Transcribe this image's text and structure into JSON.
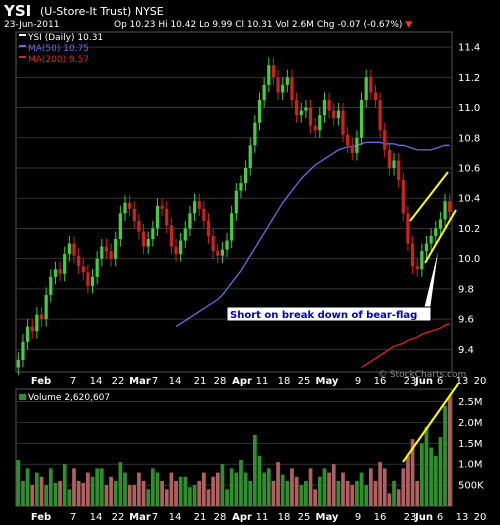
{
  "header": {
    "symbol": "YSI",
    "company": "(U-Store-It Trust)",
    "exchange": "NYSE",
    "date": "23-Jun-2011",
    "open": "Op 10.23",
    "high": "Hi 10.42",
    "low": "Lo 9.99",
    "close": "Cl 10.31",
    "volume": "Vol 2.6M",
    "change": "Chg -0.07 (-0.67%)",
    "change_arrow": "▼"
  },
  "watermark": "© StockCharts.com",
  "colors": {
    "up": "#44cc44",
    "down": "#cc2222",
    "ma50": "#6a6ae0",
    "ma200": "#dd2222",
    "annotation": "#ffff00",
    "volume_up": "#2f8f2f",
    "volume_down": "#b06060",
    "grid": "#333333"
  },
  "annotation": {
    "text": "Short on break down of bear-flag"
  },
  "chart_data": [
    {
      "type": "candlestick",
      "legend": [
        {
          "label": "YSI (Daily) 10.31",
          "color": "#ffffff"
        },
        {
          "label": "MA(50) 10.75",
          "color": "#6a6ae0"
        },
        {
          "label": "MA(200) 9.57",
          "color": "#dd2222"
        }
      ],
      "ylim": [
        9.25,
        11.5
      ],
      "yticks": [
        9.4,
        9.6,
        9.8,
        10.0,
        10.2,
        10.4,
        10.6,
        10.8,
        11.0,
        11.2,
        11.4
      ],
      "ytick_labels": [
        "9.4",
        "9.6",
        "9.8",
        "10.0",
        "10.2",
        "10.4",
        "10.6",
        "10.8",
        "11.0",
        "11.2",
        "11.4"
      ],
      "xtick_labels": [
        "Feb",
        "7",
        "14",
        "22",
        "Mar",
        "7",
        "14",
        "21",
        "28",
        "Apr",
        "11",
        "18",
        "25",
        "May",
        "9",
        "16",
        "23",
        "Jun",
        "6",
        "13",
        "20"
      ],
      "close": [
        9.33,
        9.45,
        9.55,
        9.52,
        9.63,
        9.6,
        9.76,
        9.88,
        9.93,
        9.9,
        10.03,
        10.1,
        10.02,
        9.95,
        9.91,
        9.82,
        9.88,
        10.0,
        10.08,
        10.05,
        10.0,
        10.13,
        10.3,
        10.37,
        10.33,
        10.25,
        10.18,
        10.08,
        10.13,
        10.2,
        10.35,
        10.33,
        10.22,
        10.08,
        10.03,
        10.12,
        10.2,
        10.3,
        10.38,
        10.33,
        10.25,
        10.15,
        10.05,
        10.02,
        10.06,
        10.12,
        10.3,
        10.45,
        10.5,
        10.6,
        10.75,
        10.9,
        11.05,
        11.15,
        11.28,
        11.2,
        11.1,
        11.15,
        11.2,
        11.05,
        10.95,
        10.98,
        11.0,
        10.88,
        10.85,
        10.95,
        11.05,
        10.98,
        10.93,
        10.98,
        10.82,
        10.75,
        10.7,
        10.8,
        11.05,
        11.2,
        11.1,
        11.05,
        10.85,
        10.72,
        10.6,
        10.65,
        10.52,
        10.3,
        10.1,
        9.95,
        9.93,
        10.05,
        10.1,
        10.15,
        10.2,
        10.26,
        10.38,
        10.31
      ],
      "ma50": [
        null,
        null,
        null,
        null,
        null,
        null,
        null,
        null,
        null,
        null,
        null,
        null,
        null,
        null,
        null,
        null,
        null,
        null,
        null,
        null,
        null,
        null,
        null,
        null,
        null,
        null,
        null,
        null,
        null,
        null,
        null,
        null,
        null,
        null,
        9.55,
        9.57,
        9.59,
        9.61,
        9.63,
        9.65,
        9.67,
        9.69,
        9.71,
        9.73,
        9.76,
        9.8,
        9.84,
        9.88,
        9.92,
        9.97,
        10.02,
        10.07,
        10.12,
        10.17,
        10.22,
        10.27,
        10.32,
        10.37,
        10.41,
        10.45,
        10.49,
        10.53,
        10.56,
        10.59,
        10.62,
        10.64,
        10.66,
        10.68,
        10.7,
        10.72,
        10.73,
        10.74,
        10.74,
        10.75,
        10.76,
        10.77,
        10.77,
        10.77,
        10.77,
        10.76,
        10.76,
        10.76,
        10.75,
        10.75,
        10.74,
        10.73,
        10.72,
        10.72,
        10.72,
        10.72,
        10.73,
        10.74,
        10.75,
        10.75
      ],
      "ma200": [
        null,
        null,
        null,
        null,
        null,
        null,
        null,
        null,
        null,
        null,
        null,
        null,
        null,
        null,
        null,
        null,
        null,
        null,
        null,
        null,
        null,
        null,
        null,
        null,
        null,
        null,
        null,
        null,
        null,
        null,
        null,
        null,
        null,
        null,
        null,
        null,
        null,
        null,
        null,
        null,
        null,
        null,
        null,
        null,
        null,
        null,
        null,
        null,
        null,
        null,
        null,
        null,
        null,
        null,
        null,
        null,
        null,
        null,
        null,
        null,
        null,
        null,
        null,
        null,
        null,
        null,
        null,
        null,
        null,
        null,
        null,
        null,
        null,
        null,
        9.28,
        9.3,
        9.32,
        9.34,
        9.36,
        9.38,
        9.4,
        9.42,
        9.43,
        9.44,
        9.46,
        9.47,
        9.48,
        9.5,
        9.51,
        9.52,
        9.53,
        9.54,
        9.56,
        9.57
      ]
    },
    {
      "type": "bar",
      "legend": [
        {
          "label": "Volume 2,620,607",
          "color": "#ffffff"
        }
      ],
      "ylim": [
        0,
        2.8
      ],
      "yticks": [
        0.5,
        1.0,
        1.5,
        2.0,
        2.5
      ],
      "ytick_labels": [
        "500K",
        "1.0M",
        "1.5M",
        "2.0M",
        "2.5M"
      ],
      "xtick_labels": [
        "Feb",
        "7",
        "14",
        "22",
        "Mar",
        "7",
        "14",
        "21",
        "28",
        "Apr",
        "11",
        "18",
        "25",
        "May",
        "9",
        "16",
        "23",
        "Jun",
        "6",
        "13",
        "20"
      ],
      "values": [
        1.1,
        0.6,
        0.9,
        0.5,
        0.8,
        0.7,
        0.5,
        0.9,
        0.55,
        0.6,
        1.0,
        0.4,
        0.9,
        0.6,
        0.55,
        0.8,
        0.7,
        0.9,
        0.9,
        0.5,
        0.7,
        0.6,
        1.05,
        0.8,
        0.5,
        0.5,
        0.8,
        0.6,
        0.4,
        0.9,
        0.8,
        0.6,
        0.4,
        0.8,
        0.6,
        0.7,
        0.7,
        0.45,
        0.5,
        0.6,
        0.8,
        0.4,
        0.7,
        0.8,
        1.0,
        0.4,
        0.9,
        0.8,
        1.1,
        0.8,
        0.6,
        1.7,
        1.2,
        0.8,
        0.9,
        0.6,
        1.05,
        0.75,
        0.6,
        0.9,
        0.7,
        0.5,
        0.6,
        0.9,
        0.4,
        0.7,
        0.9,
        0.8,
        1.0,
        0.6,
        0.8,
        0.6,
        0.5,
        0.6,
        0.8,
        0.5,
        0.9,
        0.6,
        1.05,
        0.9,
        0.3,
        0.6,
        0.4,
        0.9,
        1.2,
        1.6,
        0.6,
        1.5,
        1.9,
        1.4,
        1.2,
        1.65,
        2.4,
        2.62
      ]
    }
  ]
}
